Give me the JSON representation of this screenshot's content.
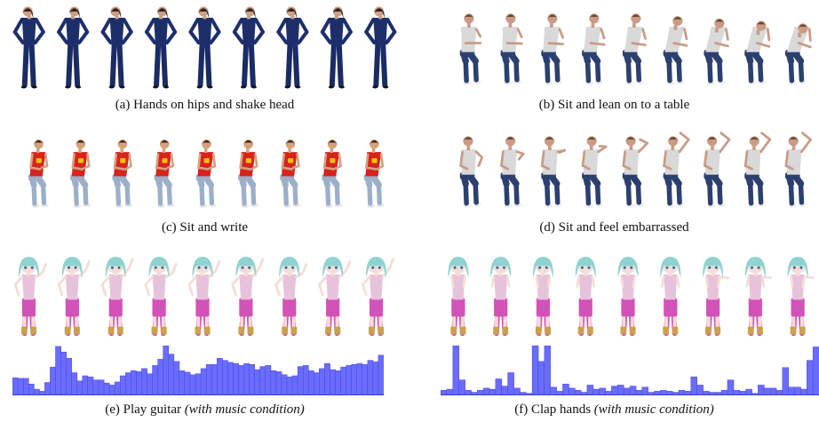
{
  "panels": [
    {
      "id": "a",
      "caption": "(a) Hands on hips and shake head",
      "frames": 9,
      "character": {
        "skin": "#c9a089",
        "hair": "#3a2418",
        "shirt": "#1d2f6b",
        "pants": "#1a2c66",
        "shoes": "#111111"
      }
    },
    {
      "id": "b",
      "caption": "(b) Sit and lean on to a table",
      "frames": 9,
      "character": {
        "skin": "#c99b86",
        "hair": "#6b4a2e",
        "shirt": "#d9d9d9",
        "pants": "#2c4070",
        "shoes": "#eeeeee"
      }
    },
    {
      "id": "c",
      "caption": "(c) Sit and write",
      "frames": 9,
      "character": {
        "skin": "#d4a27f",
        "hair": "#3b2414",
        "shirt": "#d8231c",
        "pants": "#9bb0c8",
        "shoes": "#e8e8e8"
      }
    },
    {
      "id": "d",
      "caption": "(d) Sit and feel embarrassed",
      "frames": 9,
      "character": {
        "skin": "#c99b86",
        "hair": "#6b4a2e",
        "shirt": "#d9d9d9",
        "pants": "#2c4070",
        "shoes": "#eeeeee"
      }
    },
    {
      "id": "e",
      "caption": "(e) Play guitar",
      "caption_italic": "(with music condition)",
      "frames": 9,
      "character": {
        "skin": "#f6ddd5",
        "hair": "#8fd3d0",
        "shirt": "#e6c3da",
        "pants": "#d252b8",
        "shoes": "#c9a24a"
      },
      "audio_levels": [
        0.34,
        0.33,
        0.33,
        0.22,
        0.12,
        0.08,
        0.25,
        0.55,
        0.95,
        0.84,
        0.72,
        0.44,
        0.28,
        0.38,
        0.36,
        0.3,
        0.3,
        0.24,
        0.2,
        0.26,
        0.38,
        0.44,
        0.48,
        0.46,
        0.52,
        0.42,
        0.58,
        0.7,
        0.96,
        0.8,
        0.66,
        0.48,
        0.45,
        0.4,
        0.42,
        0.52,
        0.6,
        0.6,
        0.72,
        0.68,
        0.64,
        0.62,
        0.58,
        0.62,
        0.6,
        0.5,
        0.56,
        0.58,
        0.48,
        0.46,
        0.4,
        0.36,
        0.38,
        0.56,
        0.58,
        0.48,
        0.44,
        0.52,
        0.62,
        0.5,
        0.48,
        0.55,
        0.58,
        0.6,
        0.62,
        0.6,
        0.68,
        0.65,
        0.78
      ]
    },
    {
      "id": "f",
      "caption": "(f) Clap hands",
      "caption_italic": "(with music condition)",
      "frames": 9,
      "character": {
        "skin": "#f6ddd5",
        "hair": "#8fd3d0",
        "shirt": "#e6c3da",
        "pants": "#d252b8",
        "shoes": "#c9a24a"
      },
      "audio_levels": [
        0.1,
        0.12,
        0.96,
        0.3,
        0.1,
        0.06,
        0.1,
        0.14,
        0.12,
        0.32,
        0.18,
        0.44,
        0.14,
        0.06,
        0.04,
        0.96,
        0.66,
        0.96,
        0.16,
        0.08,
        0.22,
        0.14,
        0.1,
        0.06,
        0.2,
        0.12,
        0.14,
        0.08,
        0.18,
        0.2,
        0.14,
        0.18,
        0.1,
        0.16,
        0.06,
        0.08,
        0.1,
        0.08,
        0.06,
        0.1,
        0.08,
        0.36,
        0.2,
        0.08,
        0.06,
        0.06,
        0.1,
        0.3,
        0.1,
        0.08,
        0.12,
        0.04,
        0.2,
        0.14,
        0.14,
        0.1,
        0.54,
        0.16,
        0.16,
        0.12,
        0.68,
        0.94
      ]
    }
  ],
  "colors": {
    "audio_bar": "#6a6cff",
    "audio_edge": "#3c3ccc"
  }
}
